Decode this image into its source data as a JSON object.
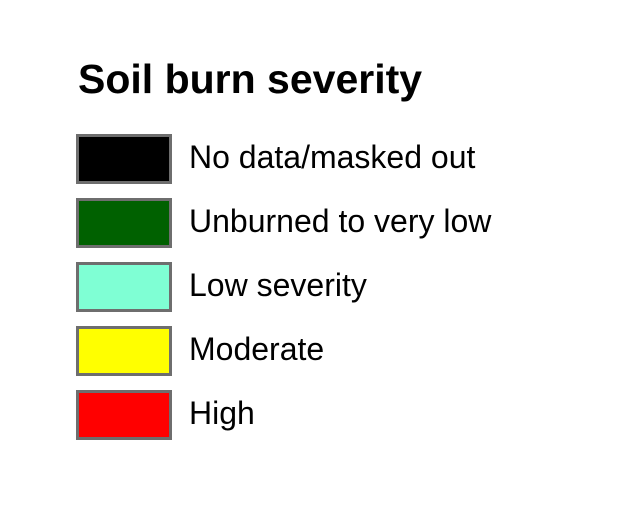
{
  "legend": {
    "title": "Soil burn severity",
    "items": [
      {
        "label": "No data/masked out",
        "color": "#000000"
      },
      {
        "label": "Unburned to very low",
        "color": "#006100"
      },
      {
        "label": "Low severity",
        "color": "#7fffd4"
      },
      {
        "label": "Moderate",
        "color": "#ffff00"
      },
      {
        "label": "High",
        "color": "#ff0000"
      }
    ],
    "border_color": "#6e6e6e"
  }
}
